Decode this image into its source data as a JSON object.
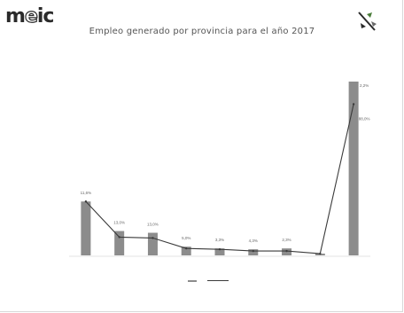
{
  "logo": {
    "prefix": "m",
    "accent": "e",
    "suffix": "ic"
  },
  "title": "Empleo generado por provincia para el año 2017",
  "colors": {
    "bar": "#8c8c8c",
    "line": "#3a3a3a",
    "logo": "#2a2a2a",
    "emblem_green": "#4a7d3a"
  },
  "emblem": {
    "icon": "flag-emblem-icon"
  },
  "chart_data": {
    "type": "bar",
    "categories": [
      "",
      "",
      "",
      "",
      "",
      "",
      "",
      "",
      ""
    ],
    "series": [
      {
        "values": [
          31,
          14,
          13,
          5,
          4,
          3.5,
          4,
          1,
          100
        ]
      },
      {
        "values": [
          31,
          10.5,
          10,
          4,
          3.5,
          2.5,
          2.5,
          1,
          87
        ]
      }
    ],
    "bar_labels": [
      "11,6%",
      "13,0%",
      "13,0%",
      "5,0%",
      "3,3%",
      "4,3%",
      "2,3%",
      "",
      "2,2%"
    ],
    "line_labels": [
      "",
      "",
      "",
      "",
      "",
      "",
      "",
      "",
      "88,0%"
    ],
    "ylim": [
      0,
      100
    ],
    "grid": false
  }
}
